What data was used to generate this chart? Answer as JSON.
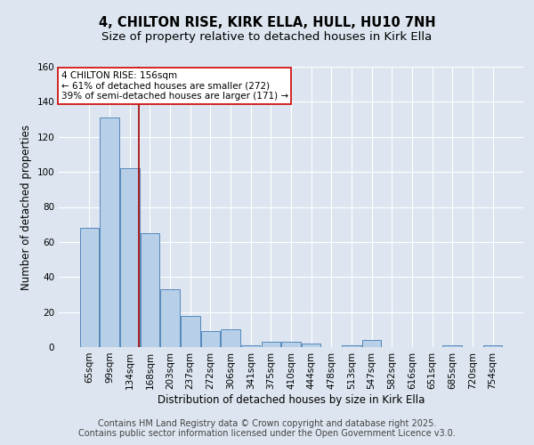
{
  "title": "4, CHILTON RISE, KIRK ELLA, HULL, HU10 7NH",
  "subtitle": "Size of property relative to detached houses in Kirk Ella",
  "xlabel": "Distribution of detached houses by size in Kirk Ella",
  "ylabel": "Number of detached properties",
  "categories": [
    "65sqm",
    "99sqm",
    "134sqm",
    "168sqm",
    "203sqm",
    "237sqm",
    "272sqm",
    "306sqm",
    "341sqm",
    "375sqm",
    "410sqm",
    "444sqm",
    "478sqm",
    "513sqm",
    "547sqm",
    "582sqm",
    "616sqm",
    "651sqm",
    "685sqm",
    "720sqm",
    "754sqm"
  ],
  "values": [
    68,
    131,
    102,
    65,
    33,
    18,
    9,
    10,
    1,
    3,
    3,
    2,
    0,
    1,
    4,
    0,
    0,
    0,
    1,
    0,
    1
  ],
  "bar_color": "#b8cfe8",
  "bar_edge_color": "#5588bb",
  "background_color": "#dde6f0",
  "grid_color": "#ffffff",
  "vline_x": 2.47,
  "vline_color": "#aa0000",
  "annotation_text": "4 CHILTON RISE: 156sqm\n← 61% of detached houses are smaller (272)\n39% of semi-detached houses are larger (171) →",
  "annotation_box_color": "#ffffff",
  "annotation_box_edge": "#cc0000",
  "footer_line1": "Contains HM Land Registry data © Crown copyright and database right 2025.",
  "footer_line2": "Contains public sector information licensed under the Open Government Licence v3.0.",
  "ylim": [
    0,
    160
  ],
  "yticks": [
    0,
    20,
    40,
    60,
    80,
    100,
    120,
    140,
    160
  ],
  "title_fontsize": 10.5,
  "subtitle_fontsize": 9.5,
  "axis_label_fontsize": 8.5,
  "tick_fontsize": 7.5,
  "annotation_fontsize": 7.5,
  "footer_fontsize": 7.0
}
